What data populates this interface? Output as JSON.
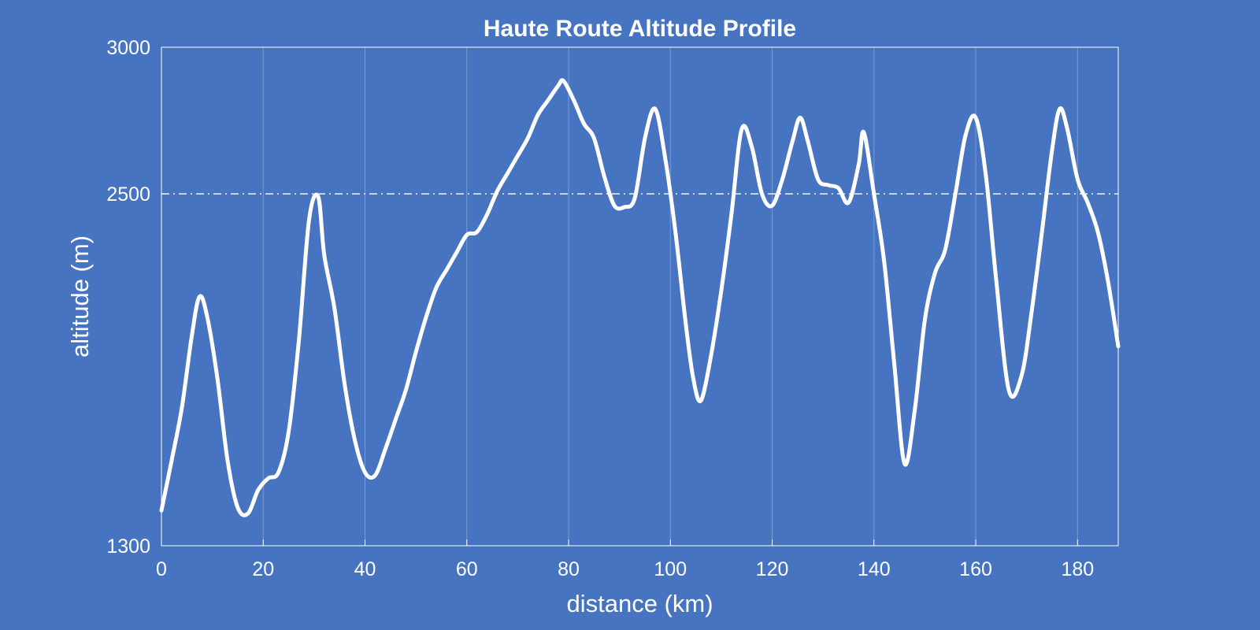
{
  "chart_data": {
    "type": "line",
    "title": "Haute Route Altitude Profile",
    "xlabel": "distance (km)",
    "ylabel": "altitude (m)",
    "xlim": [
      0,
      188
    ],
    "ylim": [
      1300,
      3000
    ],
    "xticks": [
      0,
      20,
      40,
      60,
      80,
      100,
      120,
      140,
      160,
      180
    ],
    "xtick_labels": [
      "0",
      "20",
      "40",
      "60",
      "80",
      "100",
      "120",
      "140",
      "160",
      "180"
    ],
    "yticks": [
      1300,
      2500,
      3000
    ],
    "ytick_labels": [
      "1300",
      "2500",
      "3000"
    ],
    "reference_line": {
      "y": 2500,
      "style": "dash-dot",
      "color": "#ffffff"
    },
    "grid": {
      "x": true,
      "y": false
    },
    "background_color": "#4674c1",
    "line_color": "#ffffff",
    "series": [
      {
        "x": [
          0,
          2,
          4,
          6,
          7.5,
          9,
          11,
          13,
          15,
          17,
          19,
          21,
          23,
          25,
          27,
          29,
          30.8,
          32,
          34,
          36,
          38,
          40,
          42,
          44,
          46,
          48,
          50,
          52,
          54,
          56,
          58,
          60,
          62,
          64,
          66,
          68,
          70,
          72,
          74,
          76,
          78,
          79,
          81,
          83,
          85,
          87,
          89,
          91,
          93,
          95,
          97,
          99,
          101,
          103,
          104.5,
          106,
          108,
          110,
          112,
          114,
          116,
          118,
          120,
          122,
          124,
          125.5,
          127,
          129,
          131,
          133,
          135,
          137,
          138,
          140,
          142,
          144,
          146,
          148,
          150,
          152,
          154,
          156,
          158,
          160,
          162,
          164,
          166.5,
          169,
          171,
          173,
          175,
          176.5,
          178,
          180,
          182,
          184,
          186,
          188
        ],
        "y": [
          1420,
          1590,
          1770,
          2020,
          2150,
          2080,
          1870,
          1590,
          1430,
          1410,
          1490,
          1530,
          1550,
          1690,
          2000,
          2410,
          2490,
          2290,
          2110,
          1850,
          1660,
          1550,
          1540,
          1630,
          1730,
          1830,
          1960,
          2080,
          2180,
          2240,
          2300,
          2360,
          2370,
          2430,
          2510,
          2570,
          2630,
          2690,
          2770,
          2820,
          2870,
          2885,
          2820,
          2740,
          2690,
          2560,
          2460,
          2455,
          2485,
          2690,
          2790,
          2620,
          2370,
          2060,
          1870,
          1795,
          1950,
          2170,
          2430,
          2720,
          2660,
          2500,
          2460,
          2550,
          2680,
          2760,
          2680,
          2550,
          2530,
          2520,
          2470,
          2600,
          2710,
          2500,
          2270,
          1920,
          1580,
          1760,
          2070,
          2230,
          2310,
          2500,
          2700,
          2760,
          2560,
          2210,
          1830,
          1880,
          2100,
          2370,
          2650,
          2790,
          2720,
          2550,
          2470,
          2370,
          2200,
          1980
        ]
      }
    ]
  }
}
